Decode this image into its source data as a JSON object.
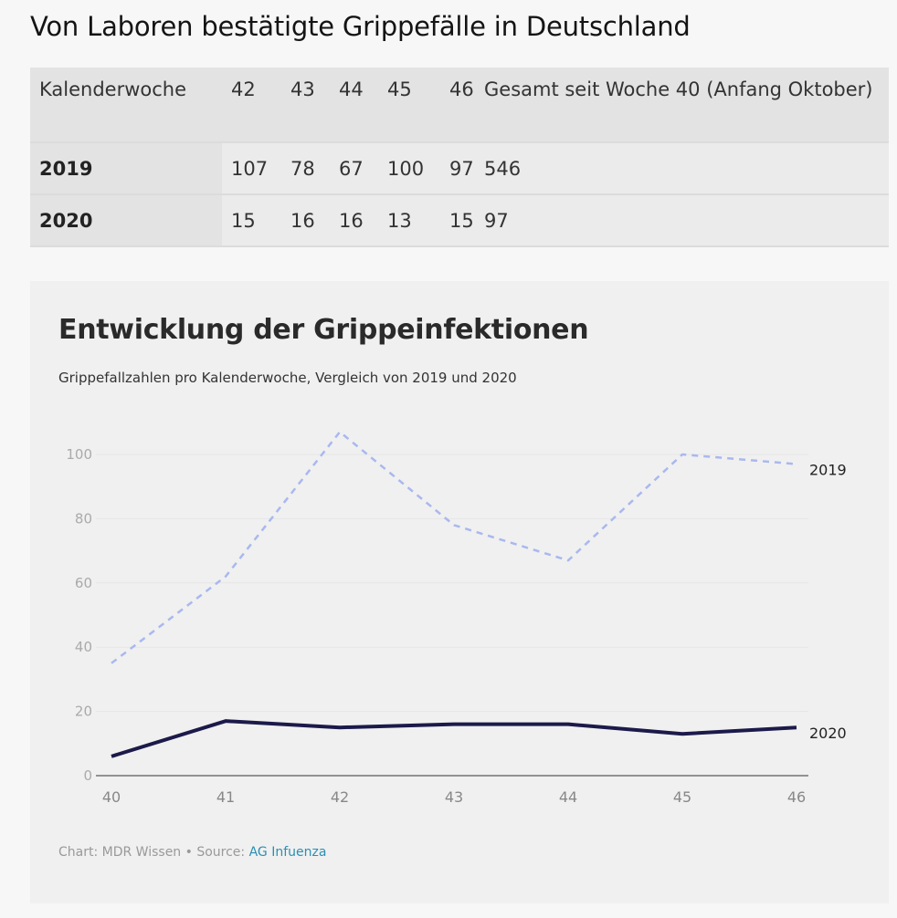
{
  "page": {
    "title": "Von Laboren bestätigte Grippefälle in Deutschland"
  },
  "table": {
    "headers": [
      "Kalenderwoche",
      "42",
      "43",
      "44",
      "45",
      "46",
      "Gesamt seit Woche 40 (Anfang Oktober)"
    ],
    "rows": [
      {
        "label": "2019",
        "values": [
          "107",
          "78",
          "67",
          "100",
          "97",
          "546"
        ]
      },
      {
        "label": "2020",
        "values": [
          "15",
          "16",
          "16",
          "13",
          "15",
          "97"
        ]
      }
    ]
  },
  "chart_data": {
    "type": "line",
    "title": "Entwicklung der Grippeinfektionen",
    "subtitle": "Grippefallzahlen pro Kalenderwoche, Vergleich von 2019 und 2020",
    "xlabel": "",
    "ylabel": "",
    "x": [
      40,
      41,
      42,
      43,
      44,
      45,
      46
    ],
    "x_tick_labels": [
      "40",
      "41",
      "42",
      "43",
      "44",
      "45",
      "46"
    ],
    "y_ticks": [
      0,
      20,
      40,
      60,
      80,
      100
    ],
    "y_tick_labels": [
      "0",
      "20",
      "40",
      "60",
      "80",
      "100"
    ],
    "ylim": [
      0,
      100
    ],
    "grid": true,
    "legend": "direct-labels-right",
    "series": [
      {
        "name": "2019",
        "values": [
          35,
          62,
          107,
          78,
          67,
          100,
          97
        ],
        "color": "#a9b8ef",
        "style": "dashed"
      },
      {
        "name": "2020",
        "values": [
          6,
          17,
          15,
          16,
          16,
          13,
          15
        ],
        "color": "#1b1a4a",
        "style": "solid"
      }
    ],
    "footer": {
      "prefix": "Chart: MDR Wissen • Source: ",
      "source_link": "AG Infuenza"
    }
  }
}
